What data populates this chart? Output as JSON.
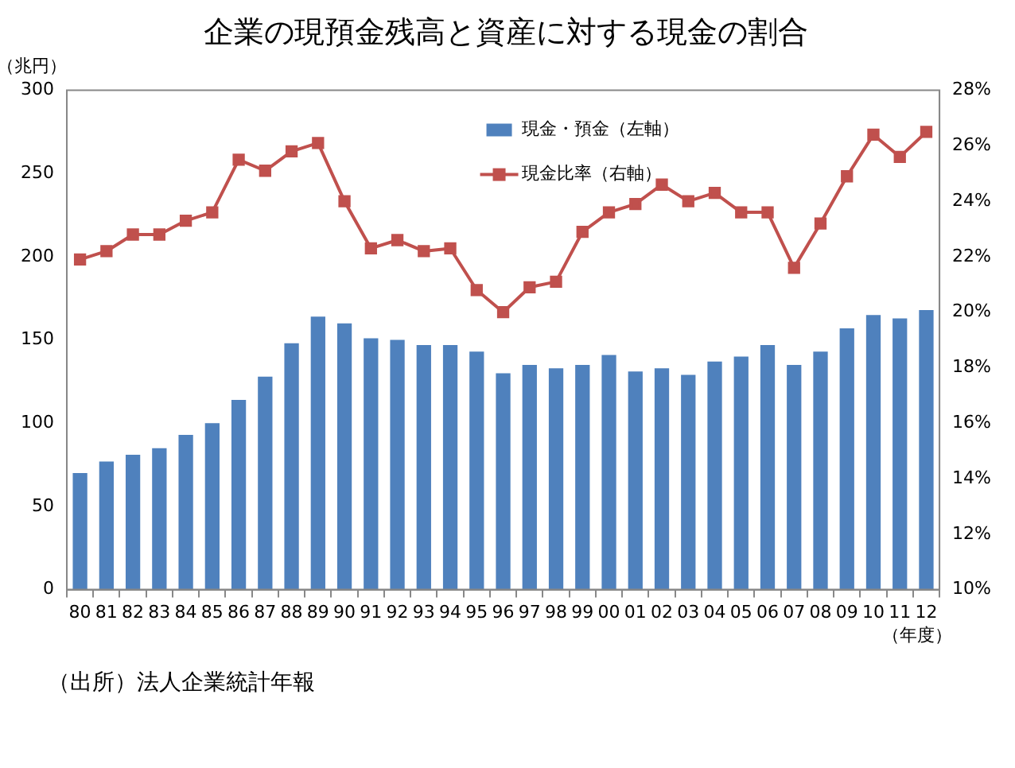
{
  "chart_data": {
    "type": "bar",
    "title": "企業の現預金残高と資産に対する現金の割合",
    "xlabel": "（年度）",
    "ylabel": "（兆円）",
    "categories": [
      "80",
      "81",
      "82",
      "83",
      "84",
      "85",
      "86",
      "87",
      "88",
      "89",
      "90",
      "91",
      "92",
      "93",
      "94",
      "95",
      "96",
      "97",
      "98",
      "99",
      "00",
      "01",
      "02",
      "03",
      "04",
      "05",
      "06",
      "07",
      "08",
      "09",
      "10",
      "11",
      "12"
    ],
    "series": [
      {
        "name": "現金・預金（左軸）",
        "color": "#4f81bd",
        "values": [
          70,
          77,
          81,
          85,
          93,
          100,
          114,
          128,
          148,
          164,
          160,
          151,
          150,
          147,
          147,
          143,
          130,
          135,
          133,
          135,
          141,
          131,
          133,
          129,
          137,
          140,
          147,
          135,
          143,
          157,
          165,
          163,
          168
        ]
      },
      {
        "name": "現金比率（右軸）",
        "type": "line",
        "axis": "y2",
        "color": "#c0504d",
        "marker": "square",
        "values": [
          21.9,
          22.2,
          22.8,
          22.8,
          23.3,
          23.6,
          25.5,
          25.1,
          25.8,
          26.1,
          24.0,
          22.3,
          22.6,
          22.2,
          22.3,
          20.8,
          20.0,
          20.9,
          21.1,
          22.9,
          23.6,
          23.9,
          24.6,
          24.0,
          24.3,
          23.6,
          23.6,
          21.6,
          23.2,
          24.9,
          26.4,
          25.6,
          26.5
        ]
      }
    ],
    "ylim": [
      0,
      300
    ],
    "yticks": [
      0,
      50,
      100,
      150,
      200,
      250,
      300
    ],
    "y2lim": [
      10,
      28
    ],
    "y2ticks": [
      {
        "value": 10,
        "label": "10%"
      },
      {
        "value": 12,
        "label": "12%"
      },
      {
        "value": 14,
        "label": "14%"
      },
      {
        "value": 16,
        "label": "16%"
      },
      {
        "value": 18,
        "label": "18%"
      },
      {
        "value": 20,
        "label": "20%"
      },
      {
        "value": 22,
        "label": "22%"
      },
      {
        "value": 24,
        "label": "24%"
      },
      {
        "value": 26,
        "label": "26%"
      },
      {
        "value": 28,
        "label": "28%"
      }
    ],
    "grid": false,
    "legend": "top",
    "annotations": [
      "（出所）法人企業統計年報"
    ]
  }
}
